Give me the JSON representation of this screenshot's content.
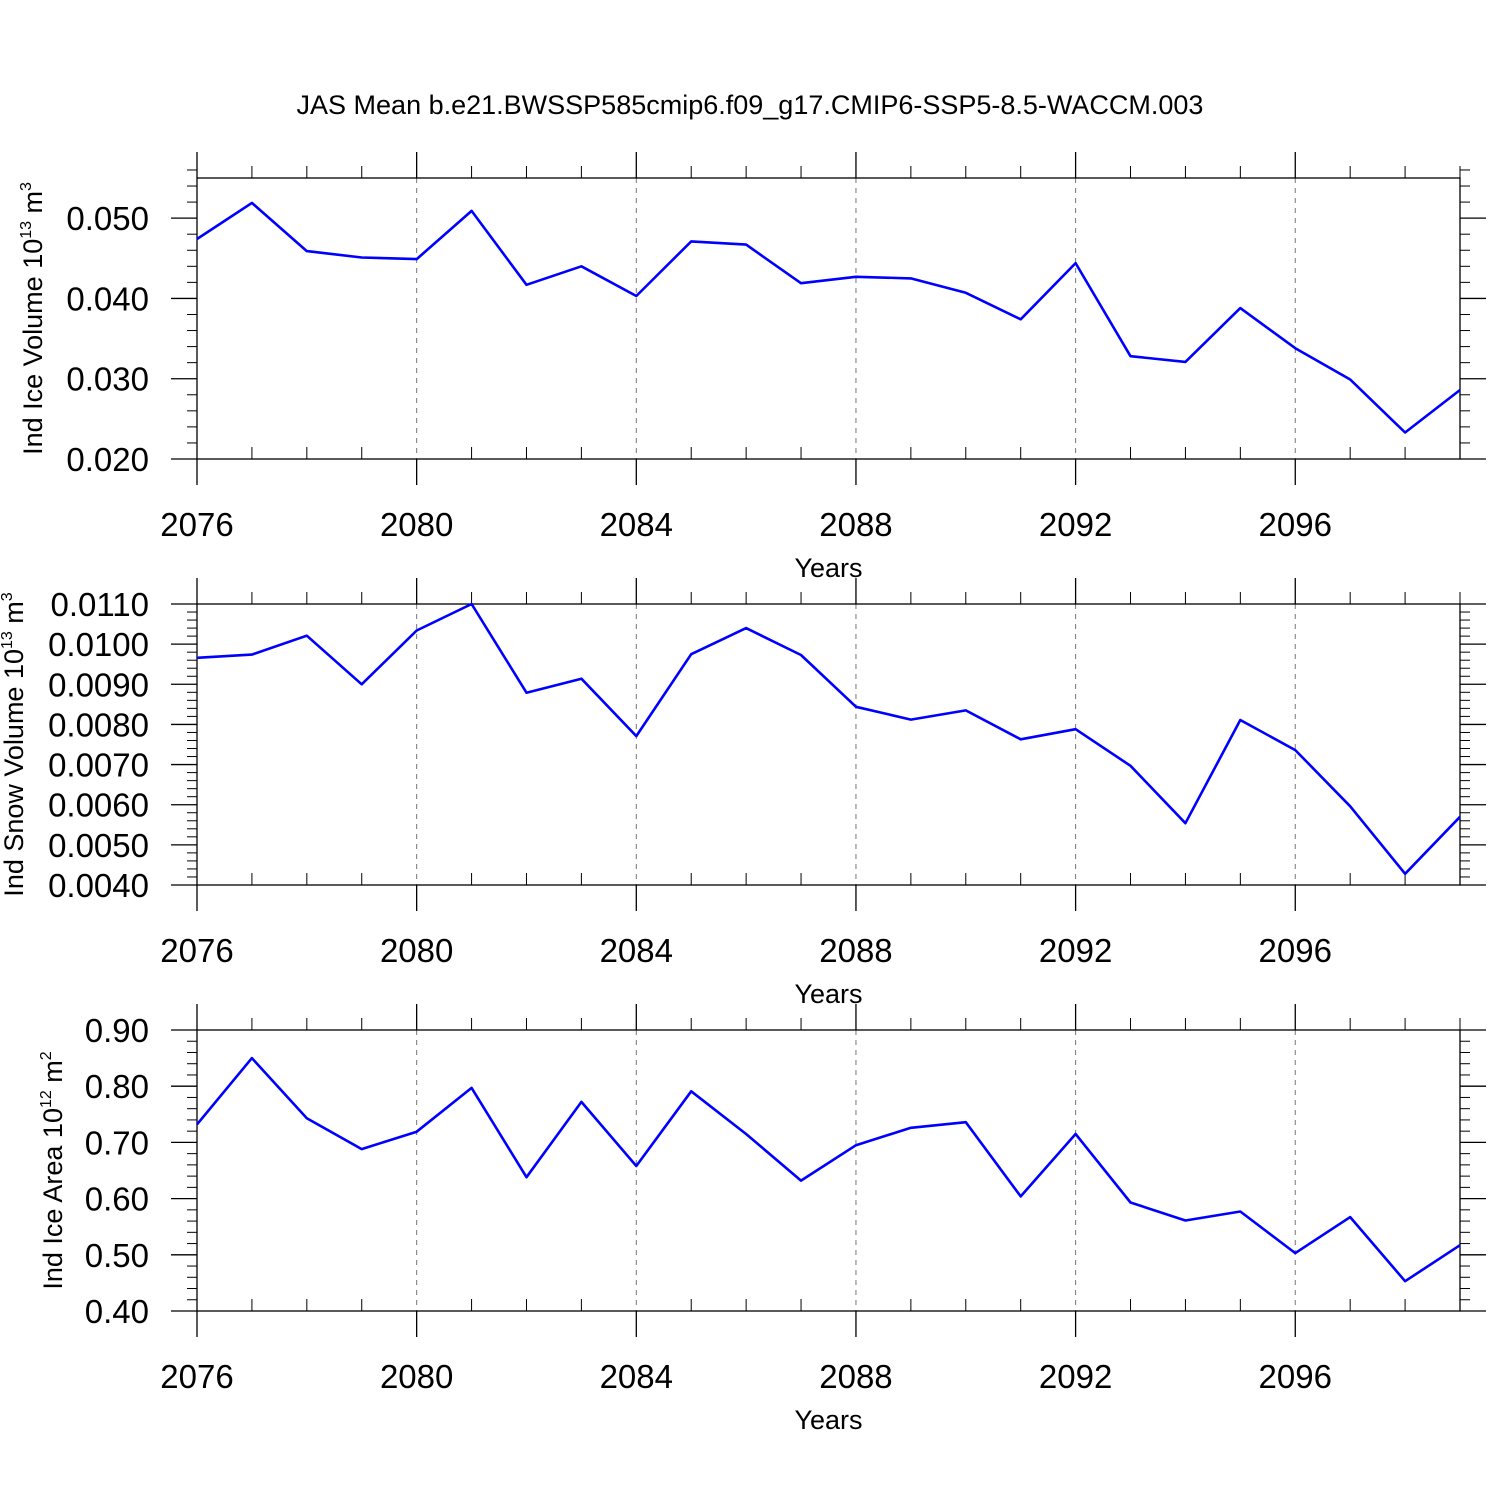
{
  "figure": {
    "title": "JAS Mean b.e21.BWSSP585cmip6.f09_g17.CMIP6-SSP5-8.5-WACCM.003",
    "line_color": "#0000ff",
    "grid_color": "#777777"
  },
  "chart_data": [
    {
      "type": "line",
      "xlabel": "Years",
      "ylabel": {
        "base": "Ind Ice Volume 10",
        "sup1": "13",
        "mid": " m",
        "sup2": "3"
      },
      "xlim": [
        2076,
        2099
      ],
      "ylim": [
        0.02,
        0.055
      ],
      "xticks": [
        2076,
        2080,
        2084,
        2088,
        2092,
        2096
      ],
      "xtick_labels": [
        "2076",
        "2080",
        "2084",
        "2088",
        "2092",
        "2096"
      ],
      "yticks": [
        0.02,
        0.03,
        0.04,
        0.05
      ],
      "ytick_labels": [
        "0.020",
        "0.030",
        "0.040",
        "0.050"
      ],
      "yminor_step": 0.002,
      "grid": "vertical dashed at major x ticks",
      "x": [
        2076,
        2077,
        2078,
        2079,
        2080,
        2081,
        2082,
        2083,
        2084,
        2085,
        2086,
        2087,
        2088,
        2089,
        2090,
        2091,
        2092,
        2093,
        2094,
        2095,
        2096,
        2097,
        2098,
        2099
      ],
      "series": [
        {
          "values": [
            0.0474,
            0.0519,
            0.0459,
            0.0451,
            0.0449,
            0.0509,
            0.0417,
            0.044,
            0.0403,
            0.0471,
            0.0467,
            0.0419,
            0.0427,
            0.0425,
            0.0407,
            0.0374,
            0.0444,
            0.0328,
            0.0321,
            0.0388,
            0.0338,
            0.0299,
            0.0233,
            0.0286
          ]
        }
      ]
    },
    {
      "type": "line",
      "xlabel": "Years",
      "ylabel": {
        "base": "Ind Snow Volume 10",
        "sup1": "13",
        "mid": " m",
        "sup2": "3"
      },
      "xlim": [
        2076,
        2099
      ],
      "ylim": [
        0.004,
        0.011
      ],
      "xticks": [
        2076,
        2080,
        2084,
        2088,
        2092,
        2096
      ],
      "xtick_labels": [
        "2076",
        "2080",
        "2084",
        "2088",
        "2092",
        "2096"
      ],
      "yticks": [
        0.004,
        0.005,
        0.006,
        0.007,
        0.008,
        0.009,
        0.01,
        0.011
      ],
      "ytick_labels": [
        "0.0040",
        "0.0050",
        "0.0060",
        "0.0070",
        "0.0080",
        "0.0090",
        "0.0100",
        "0.0110"
      ],
      "yminor_step": 0.0002,
      "grid": "vertical dashed at major x ticks",
      "x": [
        2076,
        2077,
        2078,
        2079,
        2080,
        2081,
        2082,
        2083,
        2084,
        2085,
        2086,
        2087,
        2088,
        2089,
        2090,
        2091,
        2092,
        2093,
        2094,
        2095,
        2096,
        2097,
        2098,
        2099
      ],
      "series": [
        {
          "values": [
            0.00966,
            0.00974,
            0.01021,
            0.009,
            0.01034,
            0.011,
            0.00879,
            0.00914,
            0.00771,
            0.00975,
            0.0104,
            0.00973,
            0.00844,
            0.00812,
            0.00835,
            0.00763,
            0.00788,
            0.00697,
            0.00554,
            0.00811,
            0.00736,
            0.00596,
            0.00428,
            0.0057
          ]
        }
      ]
    },
    {
      "type": "line",
      "xlabel": "Years",
      "ylabel": {
        "base": "Ind Ice Area 10",
        "sup1": "12",
        "mid": " m",
        "sup2": "2"
      },
      "xlim": [
        2076,
        2099
      ],
      "ylim": [
        0.4,
        0.9
      ],
      "xticks": [
        2076,
        2080,
        2084,
        2088,
        2092,
        2096
      ],
      "xtick_labels": [
        "2076",
        "2080",
        "2084",
        "2088",
        "2092",
        "2096"
      ],
      "yticks": [
        0.4,
        0.5,
        0.6,
        0.7,
        0.8,
        0.9
      ],
      "ytick_labels": [
        "0.40",
        "0.50",
        "0.60",
        "0.70",
        "0.80",
        "0.90"
      ],
      "yminor_step": 0.02,
      "grid": "vertical dashed at major x ticks",
      "x": [
        2076,
        2077,
        2078,
        2079,
        2080,
        2081,
        2082,
        2083,
        2084,
        2085,
        2086,
        2087,
        2088,
        2089,
        2090,
        2091,
        2092,
        2093,
        2094,
        2095,
        2096,
        2097,
        2098,
        2099
      ],
      "series": [
        {
          "values": [
            0.732,
            0.85,
            0.743,
            0.688,
            0.719,
            0.797,
            0.638,
            0.772,
            0.658,
            0.791,
            0.715,
            0.632,
            0.695,
            0.726,
            0.736,
            0.604,
            0.715,
            0.593,
            0.561,
            0.577,
            0.503,
            0.567,
            0.453,
            0.517
          ]
        }
      ]
    }
  ]
}
